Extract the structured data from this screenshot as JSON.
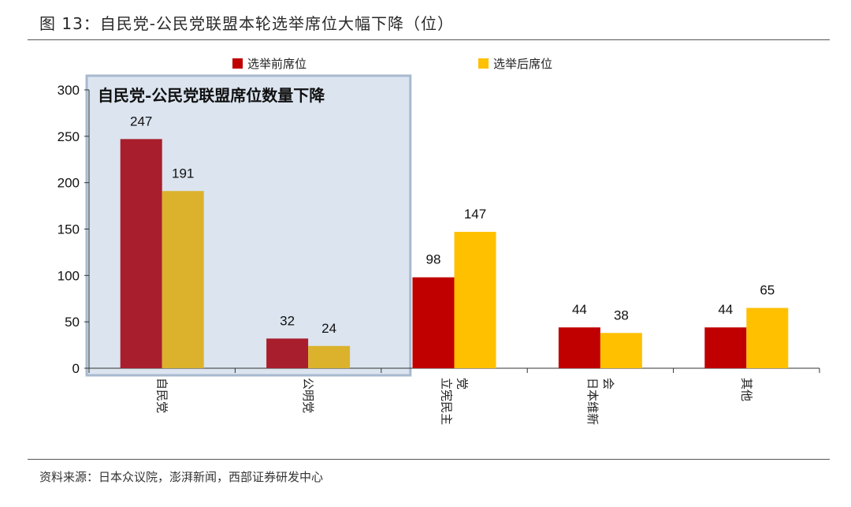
{
  "figure": {
    "title": "图 13：自民党-公民党联盟本轮选举席位大幅下降（位）",
    "source": "资料来源：日本众议院，澎湃新闻，西部证券研发中心"
  },
  "chart_data": {
    "type": "bar",
    "categories": [
      "自民党",
      "公明党",
      "立宪民主党",
      "日本维新会",
      "其他"
    ],
    "category_label_lines": [
      [
        "自民党"
      ],
      [
        "公明党"
      ],
      [
        "立宪民主",
        "党"
      ],
      [
        "日本维新",
        "会"
      ],
      [
        "其他"
      ]
    ],
    "series": [
      {
        "name": "选举前席位",
        "values": [
          247,
          32,
          98,
          44,
          44
        ]
      },
      {
        "name": "选举后席位",
        "values": [
          191,
          24,
          147,
          38,
          65
        ]
      }
    ],
    "ylim": [
      0,
      300
    ],
    "yticks": [
      0,
      50,
      100,
      150,
      200,
      250,
      300
    ],
    "legend_position": "top",
    "grid": false,
    "colors": {
      "before": "#c00000",
      "after": "#ffc000",
      "before_highlighted": "#a81e2c",
      "after_highlighted": "#dcb22d",
      "highlight_box": "#dbe4ef",
      "highlight_border": "#a8b9cf"
    },
    "annotation": {
      "text": "自民党-公民党联盟席位数量下降",
      "categories_covered": [
        "自民党",
        "公明党"
      ]
    }
  }
}
